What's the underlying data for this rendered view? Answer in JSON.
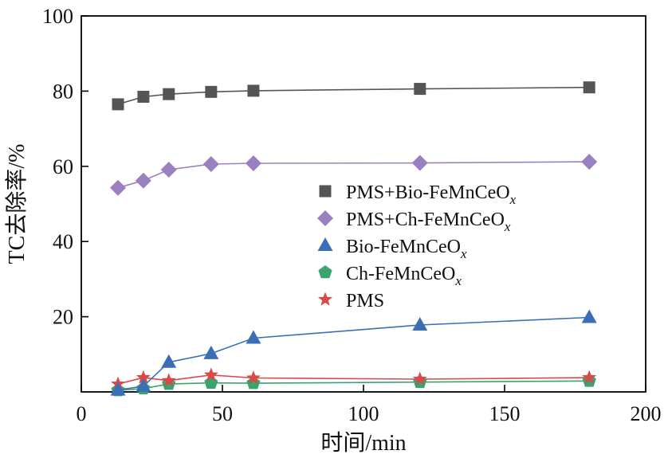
{
  "chart_data": {
    "type": "line",
    "xlabel": "时间/min",
    "ylabel": "TC去除率/%",
    "xlim": [
      0,
      200
    ],
    "ylim": [
      0,
      100
    ],
    "xticks": [
      0,
      50,
      100,
      150,
      200
    ],
    "yticks": [
      20,
      40,
      60,
      80,
      100
    ],
    "grid": false,
    "legend_position": "center-right",
    "series": [
      {
        "name": "PMS+Bio-FeMnCeO",
        "name_subscript": "x",
        "marker": "square",
        "color": "#555555",
        "x": [
          13,
          22,
          31,
          46,
          61,
          120,
          180
        ],
        "y": [
          76.5,
          78.5,
          79.2,
          79.8,
          80.1,
          80.6,
          81.0
        ]
      },
      {
        "name": "PMS+Ch-FeMnCeO",
        "name_subscript": "x",
        "marker": "diamond",
        "color": "#9b7fc0",
        "x": [
          13,
          22,
          31,
          46,
          61,
          120,
          180
        ],
        "y": [
          54.3,
          56.2,
          59.1,
          60.6,
          60.8,
          60.9,
          61.2
        ]
      },
      {
        "name": "Bio-FeMnCeO",
        "name_subscript": "x",
        "marker": "triangle",
        "color": "#3a6fb7",
        "x": [
          13,
          22,
          31,
          46,
          61,
          120,
          180
        ],
        "y": [
          0.5,
          1.5,
          7.9,
          10.2,
          14.3,
          17.8,
          19.8
        ]
      },
      {
        "name": "Ch-FeMnCeO",
        "name_subscript": "x",
        "marker": "pentagon",
        "color": "#3aa46e",
        "x": [
          13,
          22,
          31,
          46,
          61,
          120,
          180
        ],
        "y": [
          0.4,
          0.9,
          2.1,
          2.4,
          2.3,
          2.6,
          2.9
        ]
      },
      {
        "name": "PMS",
        "name_subscript": "",
        "marker": "star",
        "color": "#d84a4a",
        "x": [
          13,
          22,
          31,
          46,
          61,
          120,
          180
        ],
        "y": [
          2.1,
          3.8,
          3.0,
          4.5,
          3.7,
          3.4,
          3.8
        ]
      }
    ]
  }
}
